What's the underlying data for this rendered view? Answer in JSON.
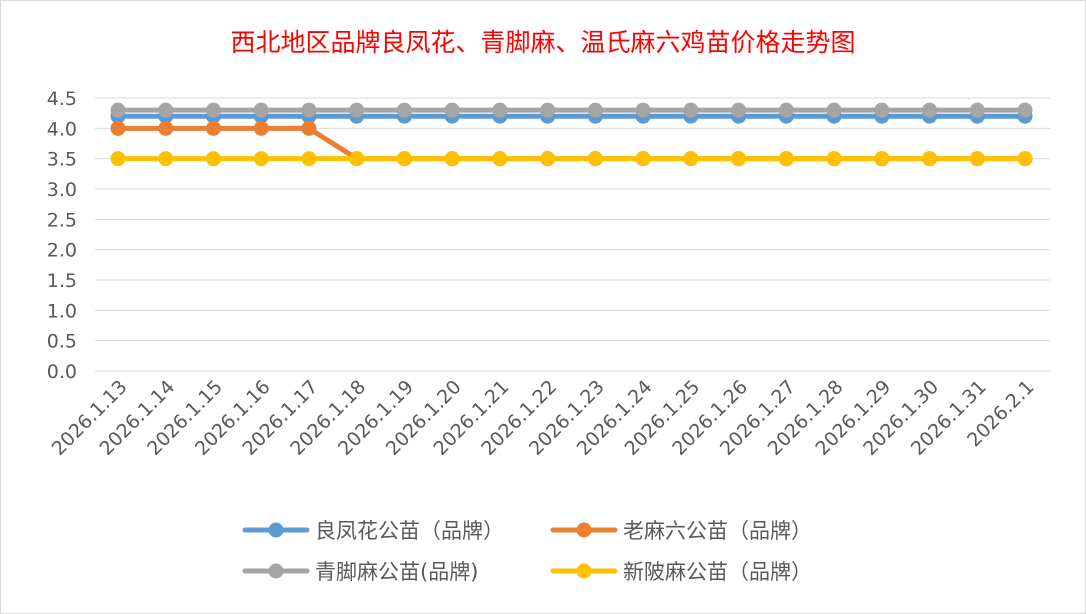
{
  "chart_data": {
    "type": "line",
    "title": "西北地区品牌良凤花、青脚麻、温氏麻六鸡苗价格走势图",
    "title_color": "#FF0000",
    "xlabel": "",
    "ylabel": "",
    "ylim": [
      0,
      4.5
    ],
    "yticks": [
      "0.0",
      "0.5",
      "1.0",
      "1.5",
      "2.0",
      "2.5",
      "3.0",
      "3.5",
      "4.0",
      "4.5"
    ],
    "grid": true,
    "legend_position": "bottom",
    "categories": [
      "2026.1.13",
      "2026.1.14",
      "2026.1.15",
      "2026.1.16",
      "2026.1.17",
      "2026.1.18",
      "2026.1.19",
      "2026.1.20",
      "2026.1.21",
      "2026.1.22",
      "2026.1.23",
      "2026.1.24",
      "2026.1.25",
      "2026.1.26",
      "2026.1.27",
      "2026.1.28",
      "2026.1.29",
      "2026.1.30",
      "2026.1.31",
      "2026.2.1"
    ],
    "series": [
      {
        "name": "良凤花公苗（品牌）",
        "color": "#5B9BD5",
        "values": [
          4.2,
          4.2,
          4.2,
          4.2,
          4.2,
          4.2,
          4.2,
          4.2,
          4.2,
          4.2,
          4.2,
          4.2,
          4.2,
          4.2,
          4.2,
          4.2,
          4.2,
          4.2,
          4.2,
          4.2
        ]
      },
      {
        "name": "老麻六公苗（品牌）",
        "color": "#ED7D31",
        "values": [
          4.0,
          4.0,
          4.0,
          4.0,
          4.0,
          3.5,
          3.5,
          3.5,
          3.5,
          3.5,
          3.5,
          3.5,
          3.5,
          3.5,
          3.5,
          3.5,
          3.5,
          3.5,
          3.5,
          3.5
        ]
      },
      {
        "name": "青脚麻公苗(品牌)",
        "color": "#A5A5A5",
        "values": [
          4.3,
          4.3,
          4.3,
          4.3,
          4.3,
          4.3,
          4.3,
          4.3,
          4.3,
          4.3,
          4.3,
          4.3,
          4.3,
          4.3,
          4.3,
          4.3,
          4.3,
          4.3,
          4.3,
          4.3
        ]
      },
      {
        "name": "新陂麻公苗（品牌）",
        "color": "#FFC000",
        "values": [
          3.5,
          3.5,
          3.5,
          3.5,
          3.5,
          3.5,
          3.5,
          3.5,
          3.5,
          3.5,
          3.5,
          3.5,
          3.5,
          3.5,
          3.5,
          3.5,
          3.5,
          3.5,
          3.5,
          3.5
        ]
      }
    ]
  }
}
